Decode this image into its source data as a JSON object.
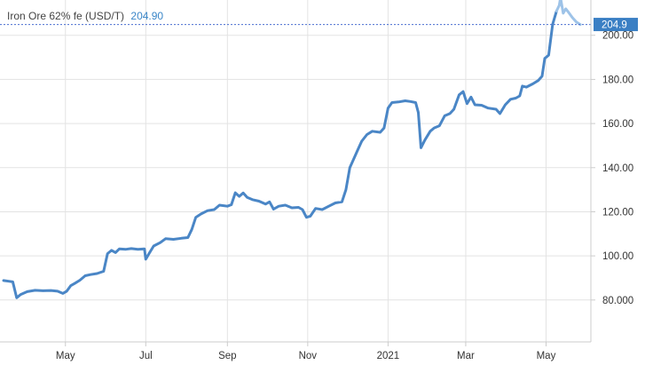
{
  "header": {
    "series_label": "Iron Ore 62% fe (USD/T)",
    "last_value": "204.90"
  },
  "last_marker_label": "204.9",
  "colors": {
    "line": "#4a86c6",
    "line_recent": "#9ec3e8",
    "last_marker_bg": "#3a7fc4",
    "ref_line": "#4a6fd0",
    "grid": "#e3e3e3",
    "frame": "#cccccc"
  },
  "chart_data": {
    "type": "line",
    "title": "Iron Ore 62% fe (USD/T)",
    "xlabel": "",
    "ylabel": "",
    "ylim": [
      61,
      216
    ],
    "grid": true,
    "y_axis_position": "right",
    "x_range": [
      "2020-03-15",
      "2021-05-31"
    ],
    "yticks": [
      {
        "value": 80,
        "label": "80.000"
      },
      {
        "value": 100,
        "label": "100.00"
      },
      {
        "value": 120,
        "label": "120.00"
      },
      {
        "value": 140,
        "label": "140.00"
      },
      {
        "value": 160,
        "label": "160.00"
      },
      {
        "value": 180,
        "label": "180.00"
      },
      {
        "value": 200,
        "label": "200.00"
      }
    ],
    "xticks": [
      {
        "date": "2020-05-01",
        "label": "May"
      },
      {
        "date": "2020-07-01",
        "label": "Jul"
      },
      {
        "date": "2020-09-01",
        "label": "Sep"
      },
      {
        "date": "2020-11-01",
        "label": "Nov"
      },
      {
        "date": "2021-01-01",
        "label": "2021"
      },
      {
        "date": "2021-03-01",
        "label": "Mar"
      },
      {
        "date": "2021-05-01",
        "label": "May"
      }
    ],
    "last_value": 204.9,
    "series": [
      {
        "name": "Iron Ore 62% fe (USD/T)",
        "points": [
          [
            "2020-03-15",
            88.8
          ],
          [
            "2020-03-19",
            88.5
          ],
          [
            "2020-03-22",
            88.2
          ],
          [
            "2020-03-25",
            81.0
          ],
          [
            "2020-03-28",
            82.5
          ],
          [
            "2020-04-02",
            83.8
          ],
          [
            "2020-04-08",
            84.4
          ],
          [
            "2020-04-14",
            84.2
          ],
          [
            "2020-04-20",
            84.3
          ],
          [
            "2020-04-25",
            84.0
          ],
          [
            "2020-04-29",
            83.0
          ],
          [
            "2020-05-02",
            84.0
          ],
          [
            "2020-05-05",
            86.5
          ],
          [
            "2020-05-08",
            87.5
          ],
          [
            "2020-05-12",
            89.0
          ],
          [
            "2020-05-16",
            91.0
          ],
          [
            "2020-05-20",
            91.5
          ],
          [
            "2020-05-25",
            92.0
          ],
          [
            "2020-05-30",
            93.0
          ],
          [
            "2020-06-02",
            101.0
          ],
          [
            "2020-06-05",
            102.5
          ],
          [
            "2020-06-08",
            101.5
          ],
          [
            "2020-06-11",
            103.2
          ],
          [
            "2020-06-16",
            103.0
          ],
          [
            "2020-06-20",
            103.3
          ],
          [
            "2020-06-25",
            103.0
          ],
          [
            "2020-06-30",
            103.2
          ],
          [
            "2020-07-01",
            98.5
          ],
          [
            "2020-07-04",
            101.5
          ],
          [
            "2020-07-07",
            104.5
          ],
          [
            "2020-07-12",
            106.0
          ],
          [
            "2020-07-16",
            107.8
          ],
          [
            "2020-07-22",
            107.5
          ],
          [
            "2020-07-28",
            108.0
          ],
          [
            "2020-08-02",
            108.3
          ],
          [
            "2020-08-05",
            112.0
          ],
          [
            "2020-08-08",
            117.5
          ],
          [
            "2020-08-12",
            119.0
          ],
          [
            "2020-08-17",
            120.5
          ],
          [
            "2020-08-22",
            121.0
          ],
          [
            "2020-08-26",
            123.0
          ],
          [
            "2020-09-01",
            122.5
          ],
          [
            "2020-09-04",
            123.2
          ],
          [
            "2020-09-07",
            128.6
          ],
          [
            "2020-09-10",
            127.0
          ],
          [
            "2020-09-13",
            128.5
          ],
          [
            "2020-09-16",
            126.5
          ],
          [
            "2020-09-20",
            125.5
          ],
          [
            "2020-09-25",
            124.8
          ],
          [
            "2020-09-30",
            123.5
          ],
          [
            "2020-10-03",
            124.5
          ],
          [
            "2020-10-06",
            121.2
          ],
          [
            "2020-10-10",
            122.5
          ],
          [
            "2020-10-15",
            123.0
          ],
          [
            "2020-10-20",
            121.8
          ],
          [
            "2020-10-25",
            122.0
          ],
          [
            "2020-10-28",
            121.0
          ],
          [
            "2020-10-31",
            117.5
          ],
          [
            "2020-11-03",
            118.0
          ],
          [
            "2020-11-07",
            121.5
          ],
          [
            "2020-11-12",
            121.0
          ],
          [
            "2020-11-17",
            122.5
          ],
          [
            "2020-11-22",
            124.0
          ],
          [
            "2020-11-27",
            124.5
          ],
          [
            "2020-11-30",
            130.0
          ],
          [
            "2020-12-03",
            140.0
          ],
          [
            "2020-12-06",
            144.0
          ],
          [
            "2020-12-09",
            148.0
          ],
          [
            "2020-12-12",
            152.0
          ],
          [
            "2020-12-16",
            155.0
          ],
          [
            "2020-12-20",
            156.5
          ],
          [
            "2020-12-26",
            156.0
          ],
          [
            "2020-12-29",
            158.0
          ],
          [
            "2021-01-01",
            167.0
          ],
          [
            "2021-01-04",
            169.5
          ],
          [
            "2021-01-09",
            169.8
          ],
          [
            "2021-01-14",
            170.3
          ],
          [
            "2021-01-18",
            170.0
          ],
          [
            "2021-01-22",
            169.5
          ],
          [
            "2021-01-24",
            165.0
          ],
          [
            "2021-01-26",
            149.0
          ],
          [
            "2021-01-29",
            152.5
          ],
          [
            "2021-02-02",
            156.5
          ],
          [
            "2021-02-05",
            158.0
          ],
          [
            "2021-02-09",
            159.0
          ],
          [
            "2021-02-13",
            163.5
          ],
          [
            "2021-02-17",
            164.5
          ],
          [
            "2021-02-20",
            166.5
          ],
          [
            "2021-02-24",
            173.0
          ],
          [
            "2021-02-27",
            174.5
          ],
          [
            "2021-03-02",
            169.0
          ],
          [
            "2021-03-05",
            172.0
          ],
          [
            "2021-03-08",
            168.5
          ],
          [
            "2021-03-13",
            168.3
          ],
          [
            "2021-03-18",
            167.0
          ],
          [
            "2021-03-24",
            166.5
          ],
          [
            "2021-03-27",
            164.5
          ],
          [
            "2021-03-31",
            168.5
          ],
          [
            "2021-04-04",
            171.0
          ],
          [
            "2021-04-08",
            171.5
          ],
          [
            "2021-04-11",
            172.5
          ],
          [
            "2021-04-13",
            177.0
          ],
          [
            "2021-04-16",
            176.5
          ],
          [
            "2021-04-21",
            178.0
          ],
          [
            "2021-04-25",
            179.5
          ],
          [
            "2021-04-28",
            181.5
          ],
          [
            "2021-04-30",
            189.5
          ],
          [
            "2021-05-03",
            191.0
          ],
          [
            "2021-05-06",
            205.0
          ],
          [
            "2021-05-09",
            211.0
          ]
        ]
      },
      {
        "name": "recent",
        "points": [
          [
            "2021-05-09",
            211.0
          ],
          [
            "2021-05-11",
            213.5
          ],
          [
            "2021-05-12",
            217.0
          ],
          [
            "2021-05-14",
            210.0
          ],
          [
            "2021-05-16",
            212.0
          ],
          [
            "2021-05-18",
            210.5
          ],
          [
            "2021-05-21",
            208.0
          ],
          [
            "2021-05-24",
            206.0
          ],
          [
            "2021-05-27",
            204.9
          ]
        ]
      }
    ]
  }
}
